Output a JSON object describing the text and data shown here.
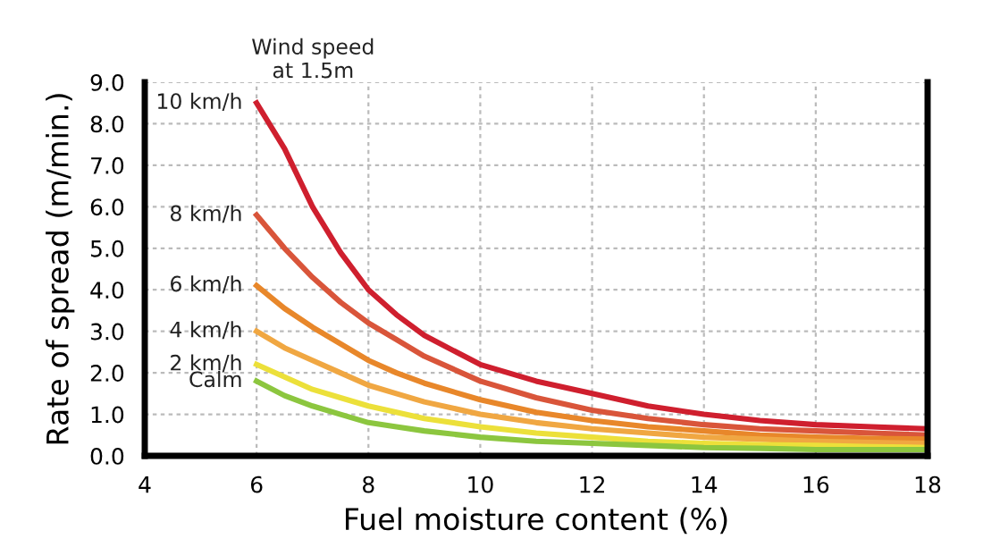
{
  "chart_data": {
    "type": "line",
    "xlabel": "Fuel moisture content (%)",
    "ylabel": "Rate of spread (m/min.)",
    "legend_title": "Wind speed\nat 1.5m",
    "x": [
      6,
      6.5,
      7,
      7.5,
      8,
      8.5,
      9,
      10,
      11,
      12,
      13,
      14,
      15,
      16,
      17,
      18
    ],
    "series": [
      {
        "name": "10 km/h",
        "color": "#cf1f2e",
        "values": [
          8.5,
          7.4,
          6.0,
          4.9,
          4.0,
          3.4,
          2.9,
          2.2,
          1.8,
          1.5,
          1.2,
          1.0,
          0.85,
          0.75,
          0.7,
          0.65
        ]
      },
      {
        "name": "8 km/h",
        "color": "#d9553a",
        "values": [
          5.8,
          5.0,
          4.3,
          3.7,
          3.2,
          2.8,
          2.4,
          1.8,
          1.4,
          1.1,
          0.9,
          0.75,
          0.65,
          0.6,
          0.55,
          0.5
        ]
      },
      {
        "name": "6 km/h",
        "color": "#e8872a",
        "values": [
          4.1,
          3.55,
          3.1,
          2.7,
          2.3,
          2.0,
          1.75,
          1.35,
          1.05,
          0.85,
          0.7,
          0.6,
          0.5,
          0.45,
          0.42,
          0.4
        ]
      },
      {
        "name": "4 km/h",
        "color": "#f0a742",
        "values": [
          3.0,
          2.6,
          2.3,
          2.0,
          1.7,
          1.5,
          1.3,
          1.0,
          0.8,
          0.65,
          0.55,
          0.45,
          0.4,
          0.35,
          0.32,
          0.3
        ]
      },
      {
        "name": "2 km/h",
        "color": "#ece03a",
        "values": [
          2.2,
          1.9,
          1.6,
          1.4,
          1.2,
          1.05,
          0.9,
          0.7,
          0.55,
          0.45,
          0.35,
          0.3,
          0.27,
          0.25,
          0.22,
          0.2
        ]
      },
      {
        "name": "Calm",
        "color": "#8cc63f",
        "values": [
          1.8,
          1.45,
          1.2,
          1.0,
          0.8,
          0.7,
          0.6,
          0.45,
          0.35,
          0.3,
          0.25,
          0.2,
          0.18,
          0.15,
          0.15,
          0.15
        ]
      }
    ],
    "xlim": [
      4,
      18
    ],
    "xticks": [
      4,
      6,
      8,
      10,
      12,
      14,
      16,
      18
    ],
    "ylim": [
      0,
      9
    ],
    "yticks": [
      {
        "value": 0,
        "label": "0.0"
      },
      {
        "value": 1,
        "label": "1.0"
      },
      {
        "value": 2,
        "label": "2.0"
      },
      {
        "value": 3,
        "label": "3.0"
      },
      {
        "value": 4,
        "label": "4.0"
      },
      {
        "value": 5,
        "label": "5.0"
      },
      {
        "value": 6,
        "label": "6.0"
      },
      {
        "value": 7,
        "label": "7.0"
      },
      {
        "value": 8,
        "label": "8.0"
      },
      {
        "value": 9,
        "label": "9.0"
      }
    ],
    "grid": true,
    "marker": "none",
    "line_style": "solid"
  }
}
